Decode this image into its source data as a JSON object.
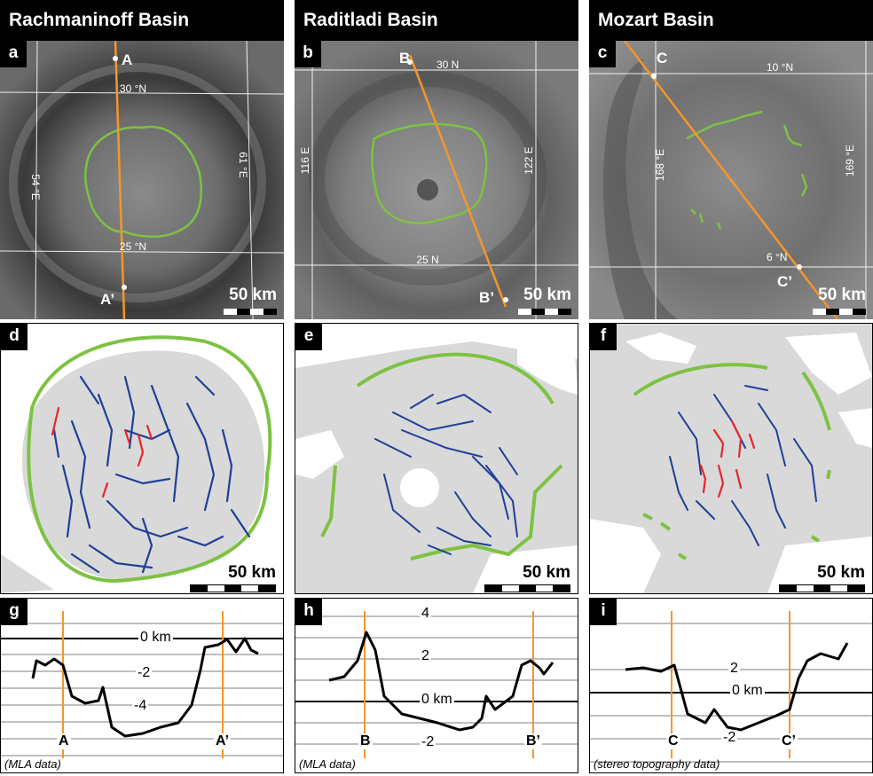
{
  "columns": [
    {
      "title": "Rachmaninoff Basin",
      "photo": {
        "letter": "a",
        "point_top": "A",
        "point_bottom": "A’",
        "lat_top": "30 °N",
        "lat_bottom": "25 °N",
        "lon_left": "54 °E",
        "lon_right": "61 °E",
        "scale": "50 km"
      },
      "map": {
        "letter": "d",
        "scale": "50 km"
      },
      "profile": {
        "letter": "g",
        "zero_label": "0 km",
        "tick_a": "-2",
        "tick_b": "-4",
        "pt_left": "A",
        "pt_right": "A’",
        "source": "(MLA data)"
      }
    },
    {
      "title": "Raditladi Basin",
      "photo": {
        "letter": "b",
        "point_top": "B",
        "point_bottom": "B’",
        "lat_top": "30 N",
        "lat_bottom": "25 N",
        "lon_left": "116 E",
        "lon_right": "122 E",
        "scale": "50 km"
      },
      "map": {
        "letter": "e",
        "scale": "50 km"
      },
      "profile": {
        "letter": "h",
        "zero_label": "0 km",
        "tick_a": "4",
        "tick_b": "2",
        "tick_c": "-2",
        "pt_left": "B",
        "pt_right": "B’",
        "source": "(MLA data)"
      }
    },
    {
      "title": "Mozart Basin",
      "photo": {
        "letter": "c",
        "point_top": "C",
        "point_bottom": "C’",
        "lat_top": "10 °N",
        "lat_bottom": "6 °N",
        "lon_left": "168 °E",
        "lon_right": "169 °E",
        "scale": "50 km"
      },
      "map": {
        "letter": "f",
        "scale": "50 km"
      },
      "profile": {
        "letter": "i",
        "zero_label": "0 km",
        "tick_a": "2",
        "tick_c": "-2",
        "pt_left": "C",
        "pt_right": "C’",
        "source": "(stereo topography data)"
      }
    }
  ],
  "colors": {
    "rim": "#7dc242",
    "graben": "#1f3f99",
    "graben_alt": "#e8262b",
    "transect": "#f4962a",
    "smooth_plains": "#d9d9d9"
  }
}
